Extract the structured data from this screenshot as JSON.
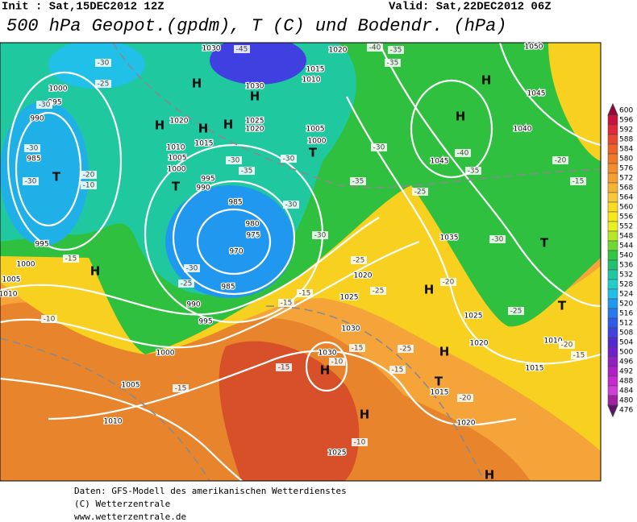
{
  "header": {
    "init": "Init : Sat,15DEC2012 12Z",
    "valid": "Valid: Sat,22DEC2012 06Z",
    "title": "500 hPa Geopot.(gpdm), T (C) und Bodendr. (hPa)"
  },
  "colorbar": {
    "values": [
      600,
      596,
      592,
      588,
      584,
      580,
      576,
      572,
      568,
      564,
      560,
      556,
      552,
      548,
      544,
      540,
      536,
      532,
      528,
      524,
      520,
      516,
      512,
      508,
      504,
      500,
      496,
      492,
      488,
      484,
      480,
      476
    ],
    "colors": [
      "#a0003c",
      "#c8143c",
      "#e0283c",
      "#e84830",
      "#ee6428",
      "#f07828",
      "#f28c2c",
      "#f5a030",
      "#f7b434",
      "#f8c838",
      "#fadc20",
      "#f8e818",
      "#e8f020",
      "#b8e828",
      "#70d830",
      "#30c840",
      "#20c070",
      "#20c8a0",
      "#20d0c8",
      "#20c0e8",
      "#2098f0",
      "#2878f0",
      "#3058e8",
      "#4040e0",
      "#5028d0",
      "#7020c8",
      "#9020c0",
      "#b020c8",
      "#c828d0",
      "#d040d8",
      "#a020a0",
      "#601070"
    ]
  },
  "map": {
    "labels": [
      "H",
      "H",
      "H",
      "H",
      "H",
      "H",
      "H",
      "H",
      "H",
      "H",
      "H",
      "H",
      "H",
      "T",
      "T",
      "T",
      "T",
      "T",
      "T",
      "1030",
      "1030",
      "1025",
      "1020",
      "1015",
      "1020",
      "1010",
      "1005",
      "1000",
      "995",
      "990",
      "985",
      "980",
      "975",
      "970",
      "985",
      "990",
      "995",
      "1000",
      "1005",
      "1010",
      "1000",
      "995",
      "990",
      "985",
      "995",
      "1000",
      "1005",
      "1010",
      "1020",
      "1015",
      "1010",
      "1005",
      "1000",
      "1035",
      "1020",
      "1025",
      "1030",
      "1030",
      "1025",
      "1020",
      "1015",
      "1020",
      "1025",
      "1010",
      "1015",
      "1045",
      "1045",
      "1040",
      "1050",
      "-30",
      "-25",
      "-30",
      "-30",
      "-30",
      "-20",
      "-10",
      "-30",
      "-25",
      "-30",
      "-35",
      "-30",
      "-30",
      "-30",
      "-25",
      "-15",
      "-15",
      "-25",
      "-20",
      "-15",
      "-10",
      "-15",
      "-15",
      "-15",
      "-10",
      "-15",
      "-25",
      "-20",
      "-10",
      "-45",
      "-40",
      "-35",
      "-35",
      "-30",
      "-35",
      "-25",
      "-40",
      "-35",
      "-30",
      "-25",
      "-20",
      "-15",
      "-20",
      "-15"
    ]
  },
  "footer": {
    "lines": [
      "Daten: GFS-Modell des amerikanischen Wetterdienstes",
      "(C) Wetterzentrale",
      "www.wetterzentrale.de"
    ]
  }
}
